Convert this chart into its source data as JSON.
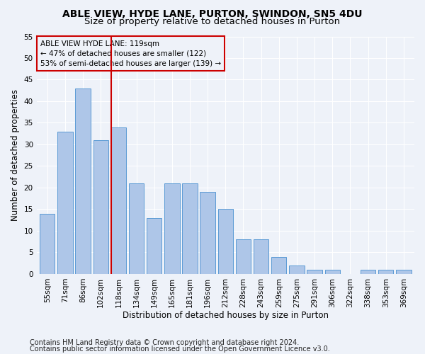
{
  "title_line1": "ABLE VIEW, HYDE LANE, PURTON, SWINDON, SN5 4DU",
  "title_line2": "Size of property relative to detached houses in Purton",
  "xlabel": "Distribution of detached houses by size in Purton",
  "ylabel": "Number of detached properties",
  "categories": [
    "55sqm",
    "71sqm",
    "86sqm",
    "102sqm",
    "118sqm",
    "134sqm",
    "149sqm",
    "165sqm",
    "181sqm",
    "196sqm",
    "212sqm",
    "228sqm",
    "243sqm",
    "259sqm",
    "275sqm",
    "291sqm",
    "306sqm",
    "322sqm",
    "338sqm",
    "353sqm",
    "369sqm"
  ],
  "values": [
    14,
    33,
    43,
    31,
    34,
    21,
    13,
    21,
    21,
    19,
    15,
    8,
    8,
    4,
    2,
    1,
    1,
    0,
    1,
    1,
    1
  ],
  "bar_color": "#aec6e8",
  "bar_edge_color": "#5b9bd5",
  "vline_color": "#cc0000",
  "vline_index": 4,
  "annotation_line1": "ABLE VIEW HYDE LANE: 119sqm",
  "annotation_line2": "← 47% of detached houses are smaller (122)",
  "annotation_line3": "53% of semi-detached houses are larger (139) →",
  "annotation_box_color": "#cc0000",
  "ylim": [
    0,
    55
  ],
  "yticks": [
    0,
    5,
    10,
    15,
    20,
    25,
    30,
    35,
    40,
    45,
    50,
    55
  ],
  "footer_line1": "Contains HM Land Registry data © Crown copyright and database right 2024.",
  "footer_line2": "Contains public sector information licensed under the Open Government Licence v3.0.",
  "background_color": "#eef2f9",
  "grid_color": "#ffffff",
  "title1_fontsize": 10,
  "title2_fontsize": 9.5,
  "axis_label_fontsize": 8.5,
  "tick_fontsize": 7.5,
  "annotation_fontsize": 7.5,
  "footer_fontsize": 7
}
